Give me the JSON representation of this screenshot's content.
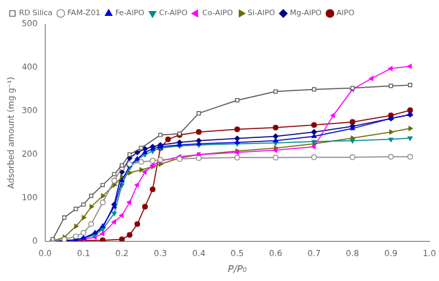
{
  "chart_data": {
    "type": "line",
    "xlabel": "P/P₀",
    "ylabel": "Adsorbed amount (mg g⁻¹)",
    "xlim": [
      0.0,
      1.0
    ],
    "ylim": [
      0,
      500
    ],
    "xticks": [
      {
        "value": 0,
        "label": "0.0"
      },
      0.1,
      0.2,
      0.3,
      0.4,
      0.5,
      0.6,
      0.7,
      0.8,
      0.9,
      {
        "value": 1,
        "label": "1.0"
      }
    ],
    "yticks": [
      0,
      100,
      200,
      300,
      400,
      500
    ],
    "grid": false,
    "legend": "upper left",
    "series": [
      {
        "name": "RD Silica",
        "color": "#555555",
        "marker": "open_square",
        "line_style": "solid",
        "x": [
          0.02,
          0.05,
          0.08,
          0.1,
          0.12,
          0.15,
          0.18,
          0.2,
          0.22,
          0.25,
          0.3,
          0.35,
          0.4,
          0.5,
          0.6,
          0.7,
          0.8,
          0.9,
          0.95
        ],
        "values": [
          5,
          55,
          75,
          85,
          105,
          130,
          155,
          175,
          200,
          215,
          245,
          248,
          295,
          325,
          345,
          350,
          353,
          358,
          360
        ]
      },
      {
        "name": "FAM-Z01",
        "color": "#888888",
        "marker": "open_circle",
        "line_style": "solid",
        "x": [
          0.02,
          0.05,
          0.08,
          0.1,
          0.12,
          0.15,
          0.18,
          0.2,
          0.22,
          0.25,
          0.28,
          0.3,
          0.35,
          0.4,
          0.5,
          0.6,
          0.7,
          0.8,
          0.9,
          0.95
        ],
        "values": [
          1,
          5,
          12,
          20,
          40,
          90,
          140,
          170,
          178,
          183,
          186,
          188,
          190,
          192,
          193,
          193,
          194,
          194,
          195,
          195
        ]
      },
      {
        "name": "Fe-AlPO",
        "color": "#0000DD",
        "marker": "triangle_up",
        "line_style": "solid",
        "x": [
          0.02,
          0.05,
          0.08,
          0.1,
          0.13,
          0.15,
          0.18,
          0.2,
          0.22,
          0.24,
          0.26,
          0.28,
          0.3,
          0.35,
          0.4,
          0.5,
          0.6,
          0.7,
          0.8,
          0.9,
          0.95
        ],
        "values": [
          1,
          2,
          4,
          8,
          20,
          35,
          80,
          140,
          175,
          190,
          205,
          213,
          218,
          222,
          225,
          228,
          232,
          242,
          260,
          283,
          292
        ]
      },
      {
        "name": "Cr-AlPO",
        "color": "#008B8B",
        "marker": "triangle_down",
        "line_style": "solid",
        "x": [
          0.02,
          0.05,
          0.08,
          0.1,
          0.13,
          0.15,
          0.18,
          0.2,
          0.22,
          0.24,
          0.26,
          0.28,
          0.3,
          0.35,
          0.4,
          0.5,
          0.6,
          0.7,
          0.8,
          0.9,
          0.95
        ],
        "values": [
          1,
          2,
          4,
          7,
          15,
          28,
          65,
          130,
          170,
          188,
          200,
          208,
          215,
          220,
          222,
          225,
          227,
          230,
          232,
          235,
          238
        ]
      },
      {
        "name": "Co-AlPO",
        "color": "#FF00FF",
        "marker": "triangle_left",
        "line_style": "solid",
        "x": [
          0.02,
          0.05,
          0.08,
          0.1,
          0.13,
          0.15,
          0.18,
          0.2,
          0.22,
          0.24,
          0.26,
          0.28,
          0.3,
          0.35,
          0.4,
          0.5,
          0.6,
          0.7,
          0.75,
          0.8,
          0.85,
          0.9,
          0.95
        ],
        "values": [
          1,
          2,
          3,
          5,
          10,
          18,
          45,
          60,
          90,
          130,
          160,
          175,
          185,
          195,
          200,
          205,
          210,
          218,
          290,
          350,
          375,
          398,
          403
        ]
      },
      {
        "name": "Si-AlPO",
        "color": "#6B6B00",
        "marker": "triangle_right",
        "line_style": "solid",
        "x": [
          0.02,
          0.05,
          0.08,
          0.1,
          0.12,
          0.15,
          0.18,
          0.2,
          0.22,
          0.25,
          0.28,
          0.3,
          0.35,
          0.4,
          0.5,
          0.6,
          0.7,
          0.8,
          0.9,
          0.95
        ],
        "values": [
          1,
          10,
          35,
          55,
          80,
          105,
          130,
          148,
          158,
          165,
          172,
          178,
          192,
          200,
          208,
          215,
          225,
          238,
          252,
          260
        ]
      },
      {
        "name": "Mg-AlPO",
        "color": "#000080",
        "marker": "diamond",
        "line_style": "solid",
        "x": [
          0.02,
          0.05,
          0.08,
          0.1,
          0.13,
          0.15,
          0.18,
          0.2,
          0.22,
          0.24,
          0.26,
          0.28,
          0.3,
          0.35,
          0.4,
          0.5,
          0.6,
          0.7,
          0.8,
          0.9,
          0.95
        ],
        "values": [
          1,
          2,
          3,
          7,
          18,
          32,
          85,
          160,
          192,
          205,
          213,
          218,
          222,
          228,
          232,
          237,
          242,
          252,
          265,
          283,
          292
        ]
      },
      {
        "name": "AlPO",
        "color": "#8B0000",
        "marker": "circle",
        "line_style": "solid",
        "x": [
          0.02,
          0.05,
          0.1,
          0.15,
          0.2,
          0.22,
          0.24,
          0.26,
          0.28,
          0.3,
          0.32,
          0.35,
          0.4,
          0.5,
          0.6,
          0.7,
          0.8,
          0.9,
          0.95
        ],
        "values": [
          1,
          1,
          2,
          3,
          5,
          15,
          40,
          80,
          120,
          215,
          235,
          245,
          252,
          258,
          262,
          268,
          275,
          290,
          302
        ]
      }
    ]
  }
}
